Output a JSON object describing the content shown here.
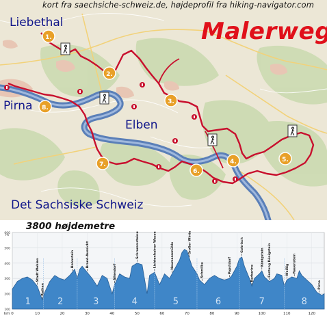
{
  "header": {
    "credit": "kort fra saechsiche-schweiz.de, højdeprofil fra hiking-navigator.com",
    "title": "Malerweg",
    "title_color": "#e0101a"
  },
  "map": {
    "places": {
      "liebethal": "Liebethal",
      "pirna": "Pirna",
      "elben": "Elben",
      "region": "Det Sachsiske Schweiz"
    },
    "stage_markers": [
      "1.",
      "2.",
      "3.",
      "4.",
      "5.",
      "6.",
      "7.",
      "8."
    ],
    "marker_color": "#e8a028",
    "route_color": "#c8102e",
    "river_color": "#5a7fb8",
    "icons": [
      "hiker-icon",
      "info-icon"
    ]
  },
  "elevation": {
    "title": "3800 højdemetre",
    "chart_data": {
      "type": "area",
      "xlabel": "km",
      "ylabel": "m",
      "xlim": [
        0,
        125
      ],
      "ylim": [
        100,
        600
      ],
      "x_ticks": [
        0,
        10,
        20,
        30,
        40,
        50,
        60,
        70,
        80,
        90,
        100,
        110,
        120
      ],
      "y_ticks": [
        100,
        200,
        300,
        400,
        500,
        600
      ],
      "grid": true,
      "stages": [
        "1",
        "2",
        "3",
        "4",
        "5",
        "6",
        "7",
        "8"
      ],
      "stage_bounds": [
        0,
        12.5,
        26,
        41,
        57,
        74,
        91,
        109,
        125
      ],
      "profile": [
        [
          0,
          230
        ],
        [
          2,
          280
        ],
        [
          4,
          300
        ],
        [
          6,
          310
        ],
        [
          8,
          290
        ],
        [
          10,
          250
        ],
        [
          12,
          160
        ],
        [
          13,
          210
        ],
        [
          15,
          280
        ],
        [
          17,
          320
        ],
        [
          19,
          300
        ],
        [
          21,
          290
        ],
        [
          23,
          320
        ],
        [
          25,
          360
        ],
        [
          26,
          300
        ],
        [
          27,
          360
        ],
        [
          28,
          380
        ],
        [
          30,
          340
        ],
        [
          32,
          300
        ],
        [
          34,
          250
        ],
        [
          36,
          320
        ],
        [
          38,
          300
        ],
        [
          40,
          200
        ],
        [
          41,
          260
        ],
        [
          43,
          330
        ],
        [
          45,
          310
        ],
        [
          47,
          300
        ],
        [
          48,
          380
        ],
        [
          50,
          400
        ],
        [
          52,
          390
        ],
        [
          54,
          200
        ],
        [
          55,
          320
        ],
        [
          57,
          340
        ],
        [
          59,
          260
        ],
        [
          61,
          330
        ],
        [
          63,
          300
        ],
        [
          65,
          360
        ],
        [
          67,
          420
        ],
        [
          68,
          470
        ],
        [
          69,
          490
        ],
        [
          70,
          480
        ],
        [
          71,
          430
        ],
        [
          72,
          380
        ],
        [
          74,
          330
        ],
        [
          75,
          290
        ],
        [
          77,
          260
        ],
        [
          79,
          300
        ],
        [
          81,
          320
        ],
        [
          83,
          300
        ],
        [
          85,
          290
        ],
        [
          87,
          300
        ],
        [
          88,
          320
        ],
        [
          90,
          380
        ],
        [
          91,
          430
        ],
        [
          92,
          440
        ],
        [
          93,
          380
        ],
        [
          95,
          300
        ],
        [
          96,
          250
        ],
        [
          97,
          300
        ],
        [
          99,
          330
        ],
        [
          100,
          350
        ],
        [
          101,
          310
        ],
        [
          103,
          280
        ],
        [
          105,
          300
        ],
        [
          106,
          330
        ],
        [
          108,
          320
        ],
        [
          109,
          250
        ],
        [
          110,
          290
        ],
        [
          112,
          310
        ],
        [
          114,
          300
        ],
        [
          115,
          350
        ],
        [
          116,
          320
        ],
        [
          118,
          290
        ],
        [
          120,
          260
        ],
        [
          122,
          210
        ],
        [
          124,
          190
        ],
        [
          125,
          200
        ]
      ],
      "annotations": [
        {
          "label": "Stadt Wehlen",
          "km": 10
        },
        {
          "label": "Rathen",
          "km": 12
        },
        {
          "label": "Hohnstein",
          "km": 24
        },
        {
          "label": "Brand-Aussicht",
          "km": 30
        },
        {
          "label": "Altendorf",
          "km": 41
        },
        {
          "label": "Schrammsteinaussicht",
          "km": 50
        },
        {
          "label": "Lichtenhainer Wasserfall",
          "km": 57
        },
        {
          "label": "Neumannmühle",
          "km": 64
        },
        {
          "label": "Großer Winterberg",
          "km": 71
        },
        {
          "label": "Schmilka",
          "km": 76
        },
        {
          "label": "Papstdorf",
          "km": 87
        },
        {
          "label": "Gohrisch",
          "km": 92
        },
        {
          "label": "Barbarine",
          "km": 96
        },
        {
          "label": "Königstein",
          "km": 100
        },
        {
          "label": "Festung Königstein",
          "km": 103
        },
        {
          "label": "Weißig",
          "km": 110
        },
        {
          "label": "Rauenstein",
          "km": 113
        },
        {
          "label": "Pirna",
          "km": 123
        }
      ]
    }
  }
}
